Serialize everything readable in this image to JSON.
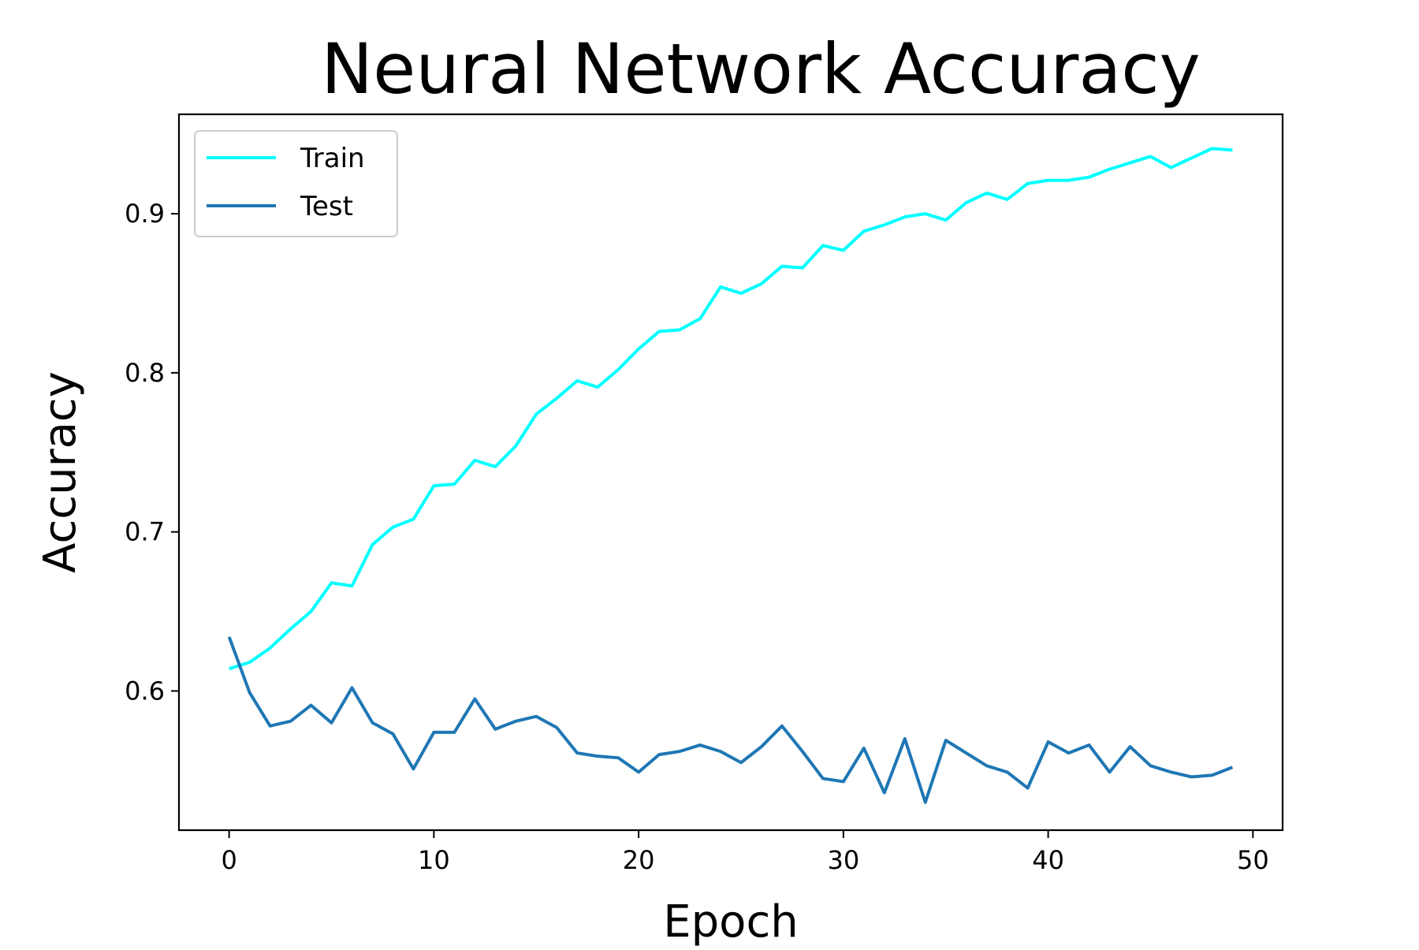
{
  "chart_data": {
    "type": "line",
    "title": "Neural Network Accuracy",
    "xlabel": "Epoch",
    "ylabel": "Accuracy",
    "xlim": [
      -2.45,
      51.45
    ],
    "ylim": [
      0.5125,
      0.9625
    ],
    "x_ticks": [
      0,
      10,
      20,
      30,
      40,
      50
    ],
    "y_ticks": [
      0.6,
      0.7,
      0.8,
      0.9
    ],
    "x_tick_labels": [
      "0",
      "10",
      "20",
      "30",
      "40",
      "50"
    ],
    "y_tick_labels": [
      "0.6",
      "0.7",
      "0.8",
      "0.9"
    ],
    "grid": false,
    "legend_position": "top-left",
    "x": [
      0,
      1,
      2,
      3,
      4,
      5,
      6,
      7,
      8,
      9,
      10,
      11,
      12,
      13,
      14,
      15,
      16,
      17,
      18,
      19,
      20,
      21,
      22,
      23,
      24,
      25,
      26,
      27,
      28,
      29,
      30,
      31,
      32,
      33,
      34,
      35,
      36,
      37,
      38,
      39,
      40,
      41,
      42,
      43,
      44,
      45,
      46,
      47,
      48,
      49
    ],
    "series": [
      {
        "name": "Train",
        "color": "#00ffff",
        "values": [
          0.614,
          0.618,
          0.627,
          0.639,
          0.65,
          0.668,
          0.666,
          0.692,
          0.703,
          0.708,
          0.729,
          0.73,
          0.745,
          0.741,
          0.754,
          0.774,
          0.784,
          0.795,
          0.791,
          0.802,
          0.815,
          0.826,
          0.827,
          0.834,
          0.854,
          0.85,
          0.856,
          0.867,
          0.866,
          0.88,
          0.877,
          0.889,
          0.893,
          0.898,
          0.9,
          0.896,
          0.907,
          0.913,
          0.909,
          0.919,
          0.921,
          0.921,
          0.923,
          0.928,
          0.932,
          0.936,
          0.929,
          0.935,
          0.941,
          0.94
        ]
      },
      {
        "name": "Test",
        "color": "#1f77b4",
        "values": [
          0.634,
          0.599,
          0.578,
          0.581,
          0.591,
          0.58,
          0.602,
          0.58,
          0.573,
          0.551,
          0.574,
          0.574,
          0.595,
          0.576,
          0.581,
          0.584,
          0.577,
          0.561,
          0.559,
          0.558,
          0.549,
          0.56,
          0.562,
          0.566,
          0.562,
          0.555,
          0.565,
          0.578,
          0.562,
          0.545,
          0.543,
          0.564,
          0.536,
          0.57,
          0.53,
          0.569,
          0.561,
          0.553,
          0.549,
          0.539,
          0.568,
          0.561,
          0.566,
          0.549,
          0.565,
          0.553,
          0.549,
          0.546,
          0.547,
          0.552
        ]
      }
    ]
  }
}
